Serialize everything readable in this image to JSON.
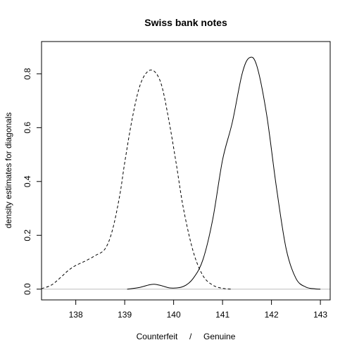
{
  "chart_data": {
    "type": "line",
    "title": "Swiss bank notes",
    "xlabel": "Counterfeit     /     Genuine",
    "ylabel": "density estimates for diagonals",
    "xlim": [
      137.3,
      143.2
    ],
    "ylim": [
      -0.04,
      0.92
    ],
    "xticks": [
      138,
      139,
      140,
      141,
      142,
      143
    ],
    "yticks": [
      0.0,
      0.2,
      0.4,
      0.6,
      0.8
    ],
    "grid": false,
    "baseline": 0,
    "series": [
      {
        "line_style": "dashed",
        "color": "#000000",
        "x": [
          137.3,
          137.5,
          137.7,
          137.85,
          138.0,
          138.2,
          138.4,
          138.6,
          138.75,
          138.9,
          139.0,
          139.15,
          139.3,
          139.45,
          139.6,
          139.75,
          139.9,
          140.05,
          140.2,
          140.4,
          140.6,
          140.8,
          141.0,
          141.2
        ],
        "y": [
          0.002,
          0.015,
          0.045,
          0.07,
          0.088,
          0.105,
          0.125,
          0.15,
          0.22,
          0.35,
          0.47,
          0.63,
          0.75,
          0.805,
          0.81,
          0.76,
          0.63,
          0.47,
          0.3,
          0.14,
          0.05,
          0.015,
          0.003,
          0.0
        ]
      },
      {
        "line_style": "solid",
        "color": "#000000",
        "x": [
          139.05,
          139.3,
          139.5,
          139.62,
          139.75,
          139.95,
          140.2,
          140.4,
          140.6,
          140.8,
          141.0,
          141.2,
          141.4,
          141.55,
          141.7,
          141.9,
          142.1,
          142.3,
          142.5,
          142.7,
          142.9,
          143.0
        ],
        "y": [
          0.0,
          0.006,
          0.016,
          0.018,
          0.013,
          0.004,
          0.01,
          0.04,
          0.11,
          0.26,
          0.48,
          0.62,
          0.8,
          0.86,
          0.83,
          0.65,
          0.38,
          0.15,
          0.04,
          0.008,
          0.001,
          0.0
        ]
      }
    ]
  }
}
